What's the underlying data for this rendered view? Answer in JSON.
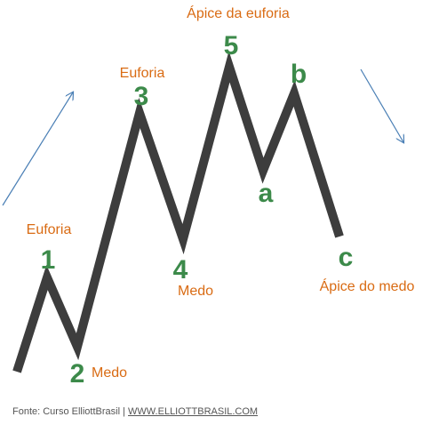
{
  "waves": {
    "one": "1",
    "two": "2",
    "three": "3",
    "four": "4",
    "five": "5",
    "a": "a",
    "b": "b",
    "c": "c"
  },
  "emotions": {
    "euforia_1": "Euforia",
    "medo_2": "Medo",
    "euforia_3": "Euforia",
    "medo_4": "Medo",
    "apice_euforia": "Ápice da euforia",
    "apice_medo": "Ápice do medo"
  },
  "footer": {
    "source": "Fonte: Curso ElliottBrasil | ",
    "link": "WWW.ELLIOTTBRASIL.COM"
  },
  "colors": {
    "wave_line": "#3d3d3d",
    "labels": "#3c8a4a",
    "emotion_text": "#d96b13",
    "trend_arrow": "#4a7fb5"
  }
}
